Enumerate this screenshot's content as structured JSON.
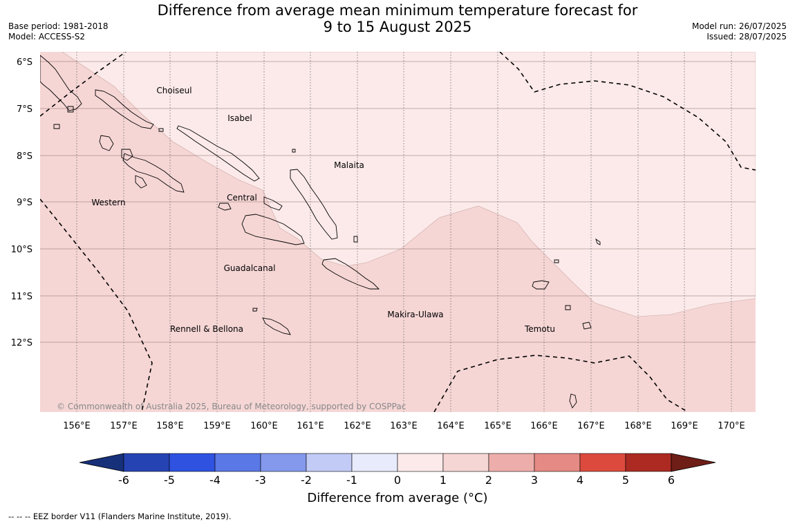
{
  "title": {
    "line1": "Difference from average mean minimum temperature forecast for",
    "line2": "9 to 15 August 2025"
  },
  "meta_left": {
    "base_period": "Base period: 1981-2018",
    "model": "Model: ACCESS-S2"
  },
  "meta_right": {
    "model_run": "Model run: 26/07/2025",
    "issued": "Issued: 28/07/2025"
  },
  "map": {
    "lat_labels": [
      "6°S",
      "7°S",
      "8°S",
      "9°S",
      "10°S",
      "11°S",
      "12°S"
    ],
    "lon_labels": [
      "156°E",
      "157°E",
      "158°E",
      "159°E",
      "160°E",
      "161°E",
      "162°E",
      "163°E",
      "164°E",
      "165°E",
      "166°E",
      "167°E",
      "168°E",
      "169°E",
      "170°E"
    ],
    "province_labels": [
      "Choiseul",
      "Isabel",
      "Malaita",
      "Western",
      "Central",
      "Guadalcanal",
      "Makira-Ulawa",
      "Rennell & Bellona",
      "Temotu"
    ],
    "copyright": "© Commonwealth of Australia 2025, Bureau of Meteorology, supported by COSPPac",
    "fill_colors": {
      "zero_to_one": "#fbeae9",
      "one_to_two": "#f5d6d5"
    }
  },
  "colorbar": {
    "ticks": [
      "-6",
      "-5",
      "-4",
      "-3",
      "-2",
      "-1",
      "0",
      "1",
      "2",
      "3",
      "4",
      "5",
      "6"
    ],
    "colors": [
      "#16307a",
      "#2643b4",
      "#2f52e0",
      "#5a78e6",
      "#8499ec",
      "#c1cbf5",
      "#e8ebfc",
      "#fbeae9",
      "#f5d6d5",
      "#edaeab",
      "#e58a84",
      "#dc4a3e",
      "#ac2a22",
      "#6e1d17"
    ],
    "label": "Difference from average (°C)"
  },
  "footnote": "--  --  -- EEZ border V11 (Flanders Marine Institute, 2019)."
}
